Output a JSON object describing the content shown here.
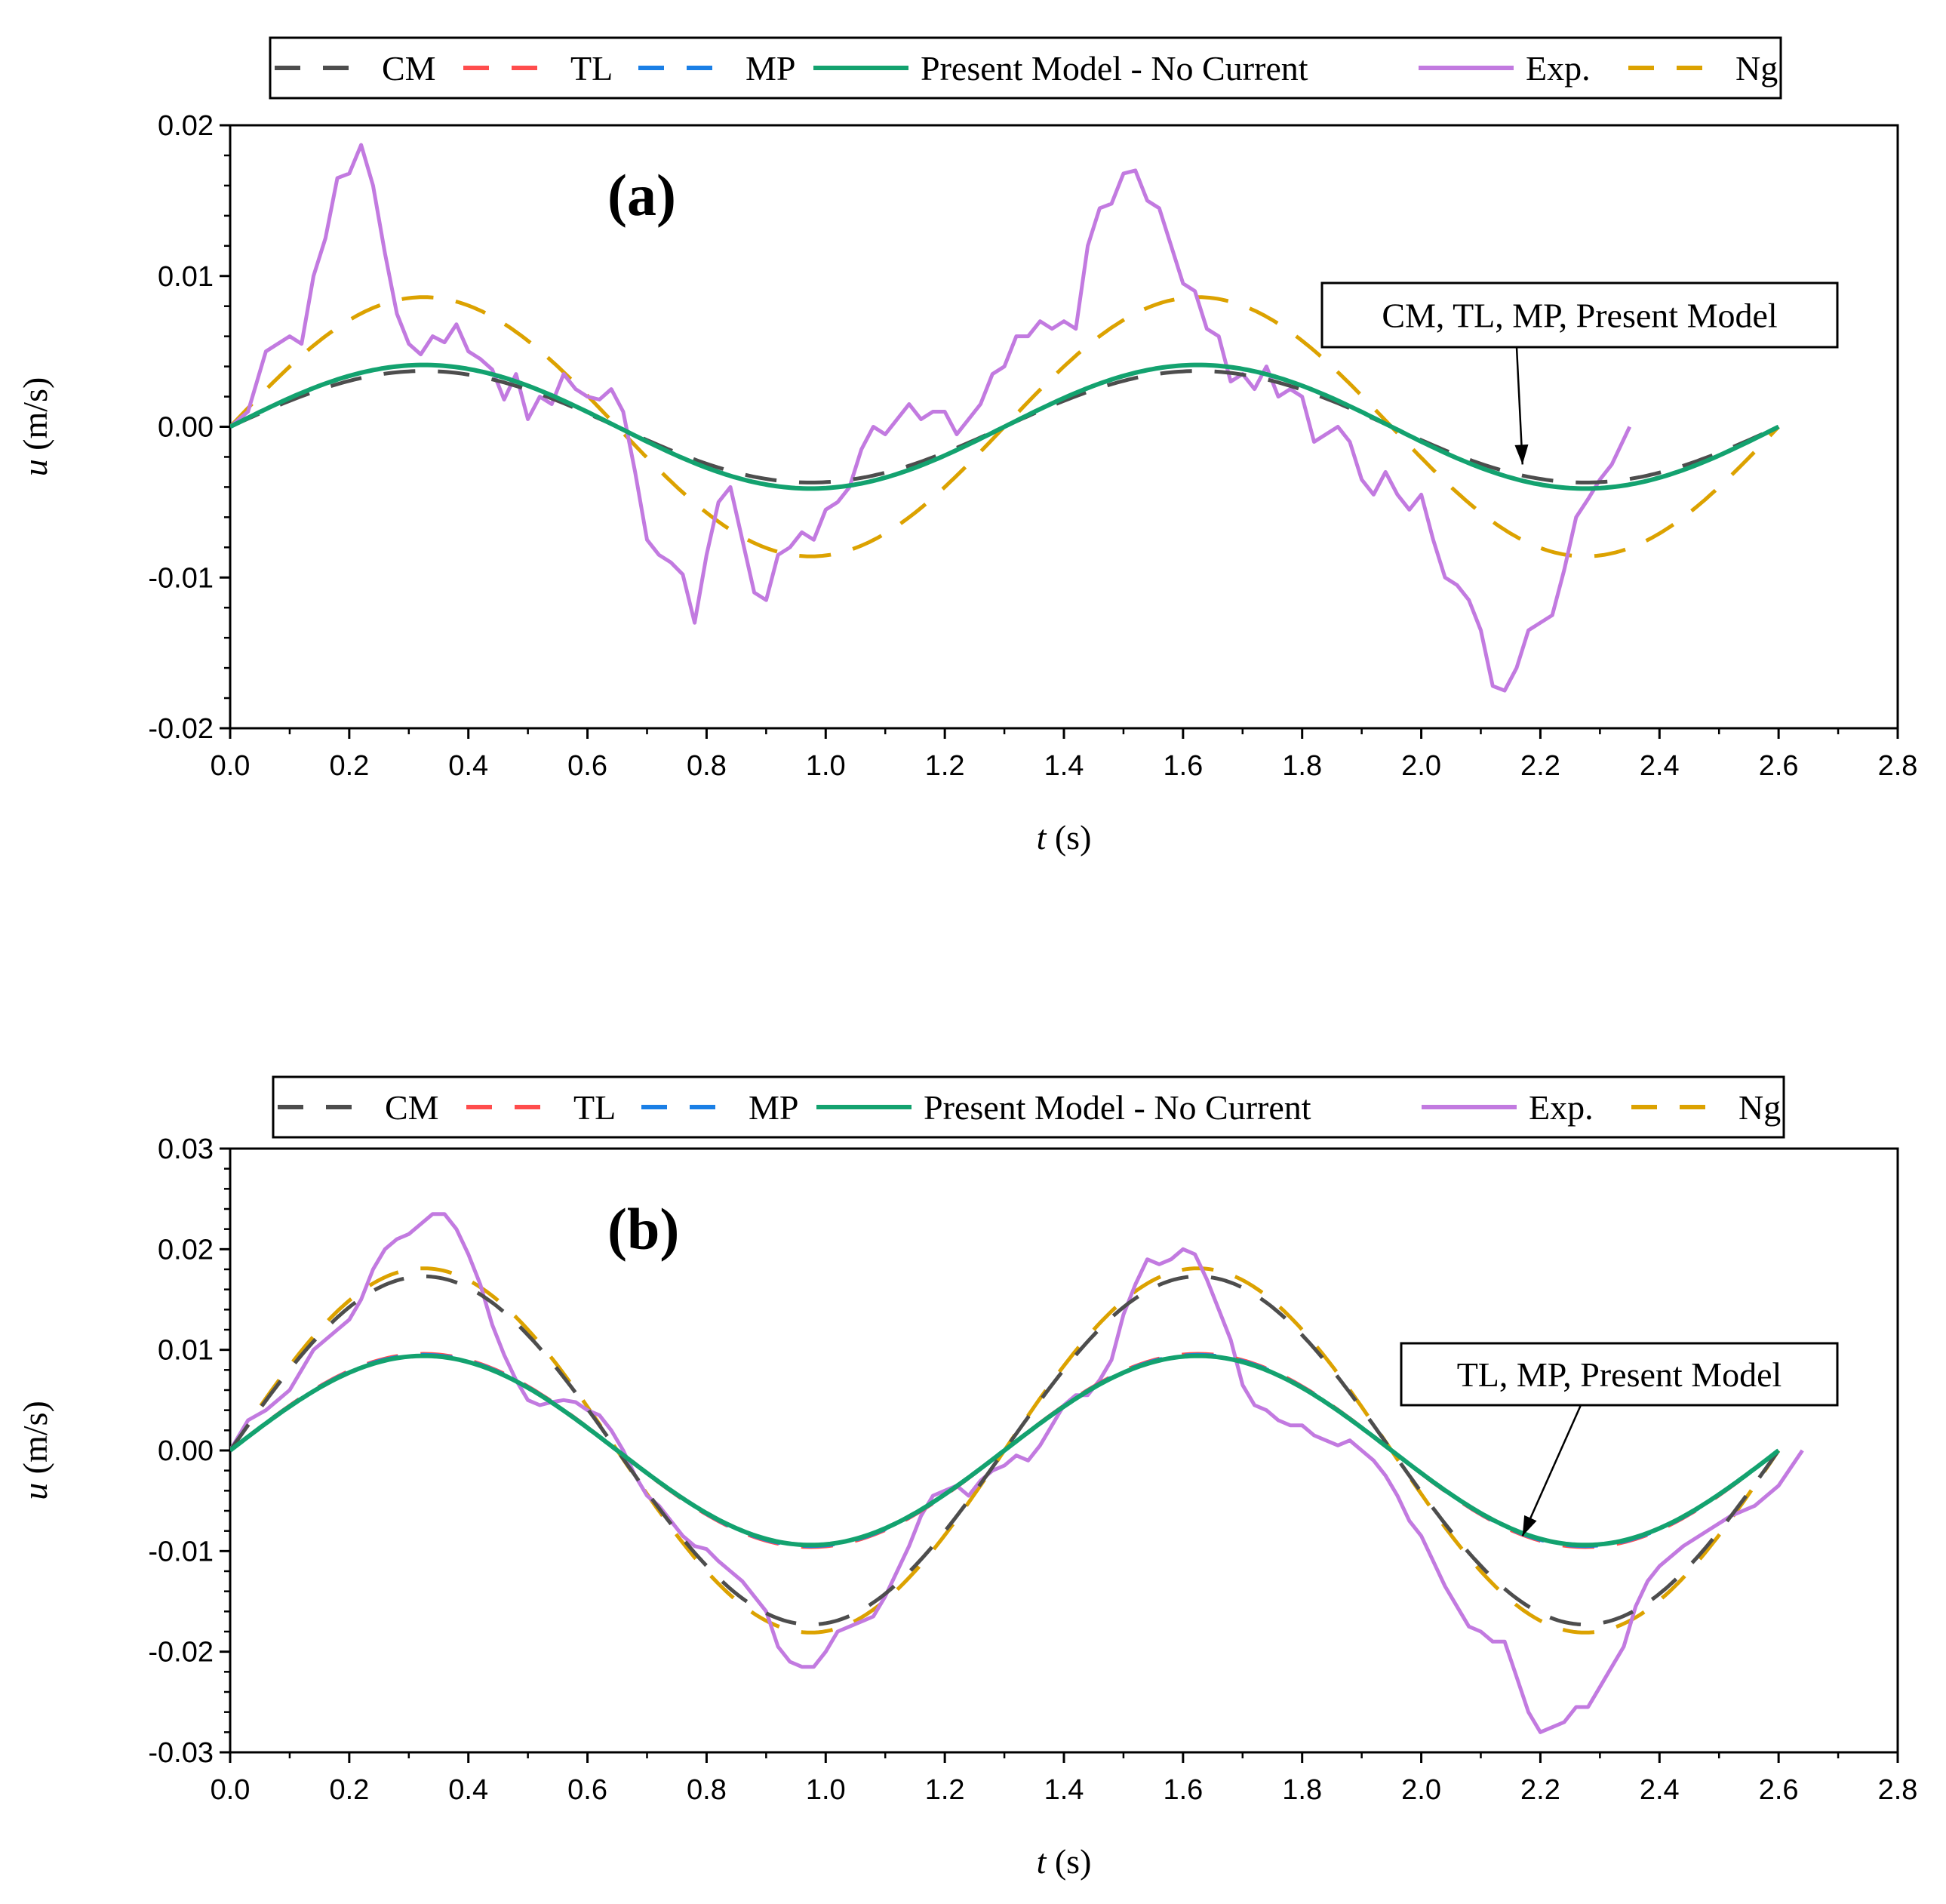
{
  "colors": {
    "CM": "#4d4d4d",
    "TL": "#ff4d4d",
    "MP": "#1a7fe6",
    "Present Model - No Current": "#13a26f",
    "Exp.": "#c27ae0",
    "Ng": "#dca200"
  },
  "chart_data": [
    {
      "type": "line",
      "panel_label": "(a)",
      "xlabel_var": "t",
      "xlabel_unit": " (s)",
      "ylabel_var": "u",
      "ylabel_unit": " (m/s)",
      "xlim": [
        0.0,
        2.8
      ],
      "ylim": [
        -0.02,
        0.02
      ],
      "x_ticks": [
        "0.0",
        "0.2",
        "0.4",
        "0.6",
        "0.8",
        "1.0",
        "1.2",
        "1.4",
        "1.6",
        "1.8",
        "2.0",
        "2.2",
        "2.4",
        "2.6",
        "2.8"
      ],
      "x_tick_values": [
        0.0,
        0.2,
        0.4,
        0.6,
        0.8,
        1.0,
        1.2,
        1.4,
        1.6,
        1.8,
        2.0,
        2.2,
        2.4,
        2.6,
        2.8
      ],
      "y_ticks": [
        "0.02",
        "0.01",
        "0.00",
        "-0.01",
        "-0.02"
      ],
      "y_tick_values": [
        0.02,
        0.01,
        0.0,
        -0.01,
        -0.02
      ],
      "legend": [
        "CM",
        "TL",
        "MP",
        "Present Model - No Current",
        "Exp.",
        "Ng"
      ],
      "annotation": {
        "text": "CM, TL, MP, Present Model",
        "points_to": [
          2.17,
          -0.0025
        ]
      },
      "series": [
        {
          "name": "CM",
          "style": "dashed",
          "period": 1.3,
          "amplitude": 0.0037,
          "t_end": 2.6
        },
        {
          "name": "TL",
          "style": "dashed",
          "period": 1.3,
          "amplitude": 0.0041,
          "t_end": 2.6
        },
        {
          "name": "MP",
          "style": "dashed",
          "period": 1.3,
          "amplitude": 0.0041,
          "t_end": 2.6
        },
        {
          "name": "Present Model - No Current",
          "style": "solid",
          "period": 1.3,
          "amplitude": 0.0041,
          "t_end": 2.6
        },
        {
          "name": "Ng",
          "style": "dashed",
          "period": 1.3,
          "amplitude": 0.0086,
          "t_end": 2.6
        },
        {
          "name": "Exp.",
          "style": "solid",
          "x": [
            0.0,
            0.03,
            0.06,
            0.08,
            0.1,
            0.12,
            0.14,
            0.16,
            0.18,
            0.2,
            0.22,
            0.24,
            0.26,
            0.28,
            0.3,
            0.32,
            0.34,
            0.36,
            0.38,
            0.4,
            0.42,
            0.44,
            0.46,
            0.48,
            0.5,
            0.52,
            0.54,
            0.56,
            0.58,
            0.6,
            0.62,
            0.64,
            0.66,
            0.68,
            0.7,
            0.72,
            0.74,
            0.76,
            0.78,
            0.8,
            0.82,
            0.84,
            0.86,
            0.88,
            0.9,
            0.92,
            0.94,
            0.96,
            0.98,
            1.0,
            1.02,
            1.04,
            1.06,
            1.08,
            1.1,
            1.12,
            1.14,
            1.16,
            1.18,
            1.2,
            1.22,
            1.24,
            1.26,
            1.28,
            1.3,
            1.32,
            1.34,
            1.36,
            1.38,
            1.4,
            1.42,
            1.44,
            1.46,
            1.48,
            1.5,
            1.52,
            1.54,
            1.56,
            1.58,
            1.6,
            1.62,
            1.64,
            1.66,
            1.68,
            1.7,
            1.72,
            1.74,
            1.76,
            1.78,
            1.8,
            1.82,
            1.84,
            1.86,
            1.88,
            1.9,
            1.92,
            1.94,
            1.96,
            1.98,
            2.0,
            2.02,
            2.04,
            2.06,
            2.08,
            2.1,
            2.12,
            2.14,
            2.16,
            2.18,
            2.2,
            2.22,
            2.24,
            2.26,
            2.28,
            2.3,
            2.32,
            2.35
          ],
          "y": [
            0.0,
            0.001,
            0.005,
            0.0055,
            0.006,
            0.0055,
            0.01,
            0.0125,
            0.0165,
            0.0168,
            0.0187,
            0.016,
            0.0115,
            0.0075,
            0.0055,
            0.0048,
            0.006,
            0.0056,
            0.0068,
            0.005,
            0.0045,
            0.0038,
            0.0018,
            0.0035,
            0.0005,
            0.002,
            0.0015,
            0.0035,
            0.0025,
            0.002,
            0.0018,
            0.0025,
            0.001,
            -0.003,
            -0.0075,
            -0.0085,
            -0.009,
            -0.0098,
            -0.013,
            -0.0085,
            -0.005,
            -0.004,
            -0.0075,
            -0.011,
            -0.0115,
            -0.0085,
            -0.008,
            -0.007,
            -0.0075,
            -0.0055,
            -0.005,
            -0.004,
            -0.0015,
            0.0,
            -0.0005,
            0.0005,
            0.0015,
            0.0005,
            0.001,
            0.001,
            -0.0005,
            0.0005,
            0.0015,
            0.0035,
            0.004,
            0.006,
            0.006,
            0.007,
            0.0065,
            0.007,
            0.0065,
            0.012,
            0.0145,
            0.0148,
            0.0168,
            0.017,
            0.015,
            0.0145,
            0.012,
            0.0095,
            0.009,
            0.0065,
            0.006,
            0.003,
            0.0035,
            0.0025,
            0.004,
            0.002,
            0.0025,
            0.002,
            -0.001,
            -0.0005,
            0.0,
            -0.001,
            -0.0035,
            -0.0045,
            -0.003,
            -0.0045,
            -0.0055,
            -0.0045,
            -0.0075,
            -0.01,
            -0.0105,
            -0.0115,
            -0.0135,
            -0.0172,
            -0.0175,
            -0.016,
            -0.0135,
            -0.013,
            -0.0125,
            -0.0095,
            -0.006,
            -0.0048,
            -0.0035,
            -0.0025,
            0.0
          ]
        }
      ]
    },
    {
      "type": "line",
      "panel_label": "(b)",
      "xlabel_var": "t",
      "xlabel_unit": " (s)",
      "ylabel_var": "u",
      "ylabel_unit": " (m/s)",
      "xlim": [
        0.0,
        2.8
      ],
      "ylim": [
        -0.03,
        0.03
      ],
      "x_ticks": [
        "0.0",
        "0.2",
        "0.4",
        "0.6",
        "0.8",
        "1.0",
        "1.2",
        "1.4",
        "1.6",
        "1.8",
        "2.0",
        "2.2",
        "2.4",
        "2.6",
        "2.8"
      ],
      "x_tick_values": [
        0.0,
        0.2,
        0.4,
        0.6,
        0.8,
        1.0,
        1.2,
        1.4,
        1.6,
        1.8,
        2.0,
        2.2,
        2.4,
        2.6,
        2.8
      ],
      "y_ticks": [
        "0.03",
        "0.02",
        "0.01",
        "0.00",
        "-0.01",
        "-0.02",
        "-0.03"
      ],
      "y_tick_values": [
        0.03,
        0.02,
        0.01,
        0.0,
        -0.01,
        -0.02,
        -0.03
      ],
      "legend": [
        "CM",
        "TL",
        "MP",
        "Present Model - No Current",
        "Exp.",
        "Ng"
      ],
      "annotation": {
        "text": "TL, MP, Present Model",
        "points_to": [
          2.17,
          -0.0085
        ]
      },
      "series": [
        {
          "name": "CM",
          "style": "dashed",
          "period": 1.3,
          "amplitude": 0.0173,
          "t_end": 2.6
        },
        {
          "name": "TL",
          "style": "dashed",
          "period": 1.3,
          "amplitude": 0.0096,
          "t_end": 2.6
        },
        {
          "name": "MP",
          "style": "dashed",
          "period": 1.3,
          "amplitude": 0.0095,
          "t_end": 2.6
        },
        {
          "name": "Present Model - No Current",
          "style": "solid",
          "period": 1.3,
          "amplitude": 0.0094,
          "t_end": 2.6
        },
        {
          "name": "Ng",
          "style": "dashed",
          "period": 1.3,
          "amplitude": 0.0181,
          "t_end": 2.6
        },
        {
          "name": "Exp.",
          "style": "solid",
          "x": [
            0.0,
            0.03,
            0.06,
            0.1,
            0.14,
            0.18,
            0.2,
            0.22,
            0.24,
            0.26,
            0.28,
            0.3,
            0.32,
            0.34,
            0.36,
            0.38,
            0.4,
            0.42,
            0.44,
            0.46,
            0.48,
            0.5,
            0.52,
            0.54,
            0.56,
            0.58,
            0.6,
            0.62,
            0.64,
            0.66,
            0.68,
            0.7,
            0.72,
            0.74,
            0.76,
            0.78,
            0.8,
            0.82,
            0.84,
            0.86,
            0.88,
            0.9,
            0.92,
            0.94,
            0.96,
            0.98,
            1.0,
            1.02,
            1.04,
            1.06,
            1.08,
            1.1,
            1.12,
            1.14,
            1.16,
            1.18,
            1.2,
            1.22,
            1.24,
            1.26,
            1.28,
            1.3,
            1.32,
            1.34,
            1.36,
            1.38,
            1.4,
            1.42,
            1.44,
            1.46,
            1.48,
            1.5,
            1.52,
            1.54,
            1.56,
            1.58,
            1.6,
            1.62,
            1.64,
            1.66,
            1.68,
            1.7,
            1.72,
            1.74,
            1.76,
            1.78,
            1.8,
            1.82,
            1.84,
            1.86,
            1.88,
            1.9,
            1.92,
            1.94,
            1.96,
            1.98,
            2.0,
            2.02,
            2.04,
            2.06,
            2.08,
            2.1,
            2.12,
            2.14,
            2.16,
            2.18,
            2.2,
            2.22,
            2.24,
            2.26,
            2.28,
            2.3,
            2.32,
            2.34,
            2.36,
            2.38,
            2.4,
            2.44,
            2.48,
            2.52,
            2.56,
            2.6,
            2.64
          ],
          "y": [
            0.0,
            0.003,
            0.004,
            0.006,
            0.01,
            0.012,
            0.013,
            0.015,
            0.018,
            0.02,
            0.021,
            0.0215,
            0.0225,
            0.0235,
            0.0235,
            0.022,
            0.0195,
            0.0165,
            0.0125,
            0.0095,
            0.007,
            0.005,
            0.0045,
            0.0048,
            0.005,
            0.0048,
            0.004,
            0.0035,
            0.002,
            0.0,
            -0.0025,
            -0.0045,
            -0.0055,
            -0.007,
            -0.0085,
            -0.0095,
            -0.0098,
            -0.011,
            -0.012,
            -0.013,
            -0.0145,
            -0.016,
            -0.0195,
            -0.021,
            -0.0215,
            -0.0215,
            -0.02,
            -0.018,
            -0.0175,
            -0.017,
            -0.0165,
            -0.0145,
            -0.012,
            -0.0095,
            -0.0065,
            -0.0045,
            -0.004,
            -0.0035,
            -0.0045,
            -0.003,
            -0.002,
            -0.0015,
            -0.0005,
            -0.001,
            0.0005,
            0.0025,
            0.0045,
            0.0055,
            0.0055,
            0.007,
            0.009,
            0.0135,
            0.0165,
            0.019,
            0.0185,
            0.019,
            0.02,
            0.0195,
            0.017,
            0.014,
            0.011,
            0.0065,
            0.0045,
            0.004,
            0.003,
            0.0025,
            0.0025,
            0.0015,
            0.001,
            0.0005,
            0.001,
            0.0,
            -0.001,
            -0.0025,
            -0.0045,
            -0.007,
            -0.0085,
            -0.011,
            -0.0135,
            -0.0155,
            -0.0175,
            -0.018,
            -0.019,
            -0.019,
            -0.0225,
            -0.026,
            -0.028,
            -0.0275,
            -0.027,
            -0.0255,
            -0.0255,
            -0.0235,
            -0.0215,
            -0.0195,
            -0.0155,
            -0.013,
            -0.0115,
            -0.0095,
            -0.008,
            -0.0065,
            -0.0055,
            -0.0035,
            0.0
          ]
        }
      ]
    }
  ]
}
